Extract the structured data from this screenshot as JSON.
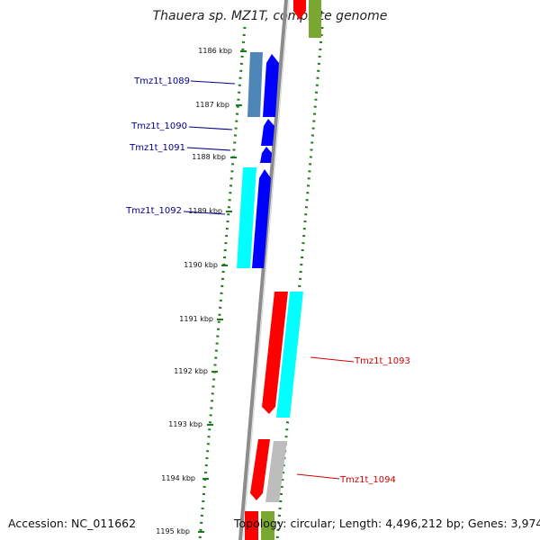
{
  "title": "Thauera sp. MZ1T, complete genome",
  "accession_text": "Accession: NC_011662",
  "topology_text": "Topology: circular; Length: 4,496,212 bp; Genes: 3,974",
  "colors": {
    "backbone": "#8c8c8c",
    "tick": "#1e7a1e",
    "red": "#ff0000",
    "cyan": "#00ffff",
    "blue": "#0000ff",
    "steelblue": "#4f86b8",
    "gray": "#bdbdbd",
    "olive": "#7aa632",
    "label_blue": "#00008b",
    "label_red": "#d40000"
  },
  "ruler_labels": [
    "1186 kbp",
    "1187 kbp",
    "1188 kbp",
    "1189 kbp",
    "1190 kbp",
    "1191 kbp",
    "1192 kbp",
    "1193 kbp",
    "1194 kbp",
    "1195 kbp"
  ],
  "gene_labels": [
    "Tmz1t_1089",
    "Tmz1t_1090",
    "Tmz1t_1091",
    "Tmz1t_1092",
    "Tmz1t_1093",
    "Tmz1t_1094"
  ]
}
